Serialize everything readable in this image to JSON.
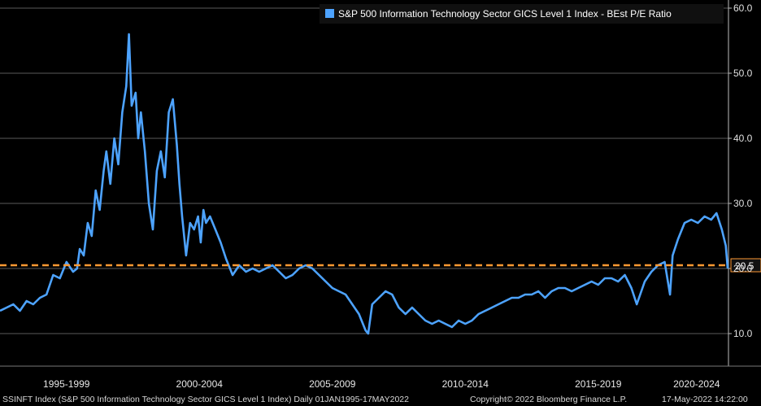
{
  "chart_data": {
    "type": "line",
    "title": "",
    "xlabel": "",
    "ylabel": "",
    "ylim": [
      5,
      60
    ],
    "yticks": [
      10,
      20,
      30,
      40,
      50,
      60
    ],
    "ytick_labels": [
      "10.0",
      "20.0",
      "30.0",
      "40.0",
      "50.0",
      "60.0"
    ],
    "xlim": [
      1995.0,
      2022.4
    ],
    "x_periods": [
      {
        "label": "1995-1999",
        "start": 1995,
        "end": 2000
      },
      {
        "label": "2000-2004",
        "start": 2000,
        "end": 2005
      },
      {
        "label": "2005-2009",
        "start": 2005,
        "end": 2010
      },
      {
        "label": "2010-2014",
        "start": 2010,
        "end": 2015
      },
      {
        "label": "2015-2019",
        "start": 2015,
        "end": 2020
      },
      {
        "label": "2020-2024",
        "start": 2020,
        "end": 2025
      }
    ],
    "legend": {
      "text": "S&P 500 Information Technology Sector GICS Level 1 Index - BEst P/E Ratio",
      "placement": "top-right"
    },
    "series": [
      {
        "name": "S&P 500 Information Technology Sector GICS Level 1 Index - BEst P/E Ratio",
        "color": "#4da3ff",
        "x": [
          1995.0,
          1995.25,
          1995.5,
          1995.75,
          1996.0,
          1996.25,
          1996.5,
          1996.75,
          1997.0,
          1997.25,
          1997.5,
          1997.75,
          1997.9,
          1998.0,
          1998.15,
          1998.3,
          1998.45,
          1998.6,
          1998.75,
          1998.9,
          1999.0,
          1999.15,
          1999.3,
          1999.45,
          1999.6,
          1999.75,
          1999.85,
          1999.95,
          2000.1,
          2000.2,
          2000.3,
          2000.45,
          2000.6,
          2000.75,
          2000.9,
          2001.05,
          2001.2,
          2001.35,
          2001.5,
          2001.65,
          2001.75,
          2001.85,
          2002.0,
          2002.15,
          2002.3,
          2002.45,
          2002.55,
          2002.65,
          2002.75,
          2002.9,
          2003.1,
          2003.3,
          2003.5,
          2003.75,
          2004.0,
          2004.25,
          2004.5,
          2004.75,
          2005.0,
          2005.25,
          2005.5,
          2005.75,
          2006.0,
          2006.25,
          2006.5,
          2006.75,
          2007.0,
          2007.25,
          2007.5,
          2007.75,
          2008.0,
          2008.25,
          2008.5,
          2008.75,
          2008.85,
          2009.0,
          2009.25,
          2009.5,
          2009.75,
          2010.0,
          2010.25,
          2010.5,
          2010.75,
          2011.0,
          2011.25,
          2011.5,
          2011.75,
          2012.0,
          2012.25,
          2012.5,
          2012.75,
          2013.0,
          2013.25,
          2013.5,
          2013.75,
          2014.0,
          2014.25,
          2014.5,
          2014.75,
          2015.0,
          2015.25,
          2015.5,
          2015.75,
          2016.0,
          2016.25,
          2016.5,
          2016.75,
          2017.0,
          2017.25,
          2017.5,
          2017.75,
          2018.0,
          2018.25,
          2018.5,
          2018.75,
          2018.95,
          2019.25,
          2019.5,
          2019.75,
          2020.0,
          2020.2,
          2020.3,
          2020.5,
          2020.75,
          2021.0,
          2021.25,
          2021.5,
          2021.75,
          2021.95,
          2022.15,
          2022.3,
          2022.37
        ],
        "values": [
          13.5,
          14.0,
          14.5,
          13.5,
          15.0,
          14.5,
          15.5,
          16.0,
          19.0,
          18.5,
          21.0,
          19.5,
          20.0,
          23.0,
          22.0,
          27.0,
          25.0,
          32.0,
          29.0,
          35.0,
          38.0,
          33.0,
          40.0,
          36.0,
          44.0,
          48.0,
          56.0,
          45.0,
          47.0,
          40.0,
          44.0,
          38.0,
          30.0,
          26.0,
          35.0,
          38.0,
          34.0,
          44.0,
          46.0,
          39.0,
          33.0,
          28.0,
          22.0,
          27.0,
          26.0,
          28.0,
          24.0,
          29.0,
          27.0,
          28.0,
          26.0,
          24.0,
          21.5,
          19.0,
          20.5,
          19.5,
          20.0,
          19.5,
          20.0,
          20.5,
          19.5,
          18.5,
          19.0,
          20.0,
          20.5,
          20.0,
          19.0,
          18.0,
          17.0,
          16.5,
          16.0,
          14.5,
          13.0,
          10.5,
          10.0,
          14.5,
          15.5,
          16.5,
          16.0,
          14.0,
          13.0,
          14.0,
          13.0,
          12.0,
          11.5,
          12.0,
          11.5,
          11.0,
          12.0,
          11.5,
          12.0,
          13.0,
          13.5,
          14.0,
          14.5,
          15.0,
          15.5,
          15.5,
          16.0,
          16.0,
          16.5,
          15.5,
          16.5,
          17.0,
          17.0,
          16.5,
          17.0,
          17.5,
          18.0,
          17.5,
          18.5,
          18.5,
          18.0,
          19.0,
          17.0,
          14.5,
          18.0,
          19.5,
          20.5,
          21.0,
          16.0,
          22.0,
          24.5,
          27.0,
          27.5,
          27.0,
          28.0,
          27.5,
          28.5,
          26.0,
          23.5,
          20.0
        ]
      }
    ],
    "reference_line": {
      "value": 20.5,
      "label": "20.5",
      "color": "#ff9933",
      "style": "dashed"
    },
    "grid": true
  },
  "footer": {
    "left": "SSINFT Index (S&P 500 Information Technology Sector GICS Level 1 Index)  Daily 01JAN1995-17MAY2022",
    "center": "Copyright© 2022 Bloomberg Finance L.P.",
    "right": "17-May-2022 14:22:00"
  }
}
